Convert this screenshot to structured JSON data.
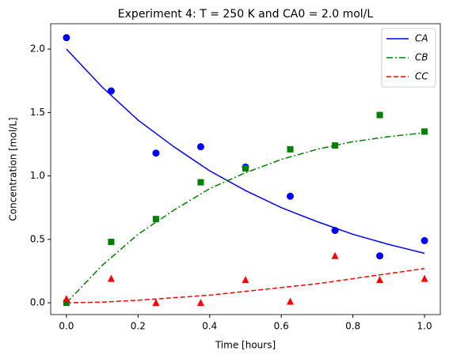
{
  "chart_data": {
    "type": "line",
    "title": "Experiment 4: T = 250 K and CA0 = 2.0 mol/L",
    "x_label": "Time [hours]",
    "y_label": "Concentration [mol/L]",
    "x": [
      0,
      0.1,
      0.2,
      0.3,
      0.4,
      0.5,
      0.6,
      0.7,
      0.8,
      0.9,
      1.0
    ],
    "series": [
      {
        "name": "CA",
        "color": "#0000ff",
        "linestyle": "-",
        "values": [
          2.0,
          1.7,
          1.44,
          1.23,
          1.04,
          0.885,
          0.75,
          0.64,
          0.54,
          0.46,
          0.39
        ]
      },
      {
        "name": "CB",
        "color": "#008000",
        "linestyle": "-.",
        "values": [
          0,
          0.295,
          0.54,
          0.73,
          0.9,
          1.025,
          1.13,
          1.21,
          1.27,
          1.31,
          1.34
        ]
      },
      {
        "name": "CC",
        "color": "#ff0000",
        "linestyle": "--",
        "values": [
          0,
          0.005,
          0.02,
          0.04,
          0.06,
          0.09,
          0.12,
          0.15,
          0.19,
          0.23,
          0.27
        ]
      }
    ],
    "scatter": {
      "x": [
        0,
        0.125,
        0.25,
        0.375,
        0.5,
        0.625,
        0.75,
        0.875,
        1.0
      ],
      "series": [
        {
          "color": "#0000ff",
          "marker": "o",
          "values": [
            2.09,
            1.67,
            1.18,
            1.23,
            1.07,
            0.84,
            0.57,
            0.37,
            0.49
          ]
        },
        {
          "color": "#008000",
          "marker": "s",
          "values": [
            0,
            0.48,
            0.66,
            0.95,
            1.06,
            1.21,
            1.24,
            1.48,
            1.35
          ]
        },
        {
          "color": "#ff0000",
          "marker": "^",
          "values": [
            0.03,
            0.19,
            0,
            0,
            0.18,
            0.01,
            0.37,
            0.18,
            0.19
          ]
        }
      ]
    },
    "xlim": [
      -0.044,
      1.044
    ],
    "ylim": [
      -0.093,
      2.2
    ],
    "xticks": [
      {
        "value": 0,
        "label": "0.0"
      },
      0.2,
      0.4,
      0.6,
      0.8,
      {
        "value": 1,
        "label": "1.0"
      }
    ],
    "yticks": [
      {
        "value": 0,
        "label": "0.0"
      },
      0.5,
      {
        "value": 1,
        "label": "1.0"
      },
      1.5,
      {
        "value": 2,
        "label": "2.0"
      }
    ],
    "grid": false,
    "legend": "upper right"
  }
}
